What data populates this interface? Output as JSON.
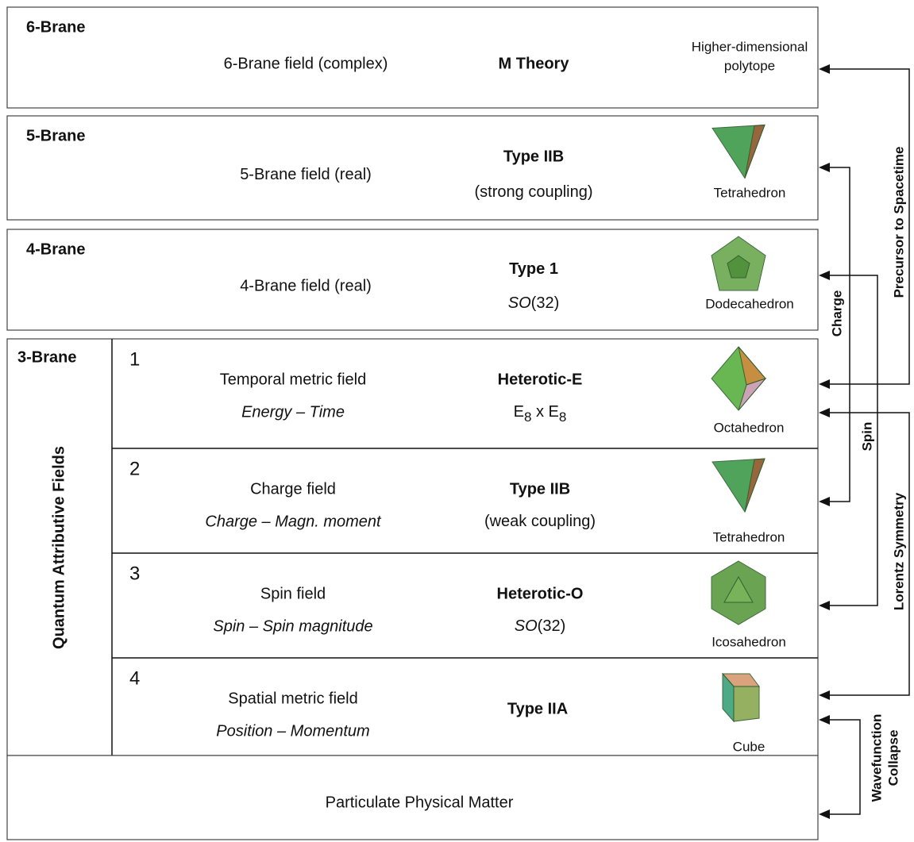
{
  "branes": [
    {
      "label": "6-Brane",
      "field": "6-Brane field (complex)",
      "theory": "M Theory",
      "shape_lines": [
        "Higher-dimensional",
        "polytope"
      ]
    },
    {
      "label": "5-Brane",
      "field": "5-Brane field (real)",
      "theory": "Type IIB",
      "detail": [
        {
          "text": "(strong coupling)",
          "style": "normal"
        }
      ],
      "shape_lines": [
        "Tetrahedron"
      ]
    },
    {
      "label": "4-Brane",
      "field": "4-Brane field (real)",
      "theory": "Type 1",
      "detail": [
        {
          "text": "SO",
          "style": "italic"
        },
        {
          "text": "(32)",
          "style": "normal"
        }
      ],
      "shape_lines": [
        "Dodecahedron"
      ]
    }
  ],
  "three_brane": {
    "label": "3-Brane",
    "side_label": "Quantum Attributive Fields",
    "rows": [
      {
        "number": "1",
        "field": "Temporal metric field",
        "pair": "Energy – Time",
        "theory": "Heterotic-E",
        "detail": [
          {
            "text": "E",
            "style": "normal"
          },
          {
            "text": "8",
            "style": "sub"
          },
          {
            "text": " x E",
            "style": "normal"
          },
          {
            "text": "8",
            "style": "sub"
          }
        ],
        "shape": "Octahedron"
      },
      {
        "number": "2",
        "field": "Charge field",
        "pair": "Charge – Magn. moment",
        "theory": "Type IIB",
        "detail": [
          {
            "text": "(weak coupling)",
            "style": "normal"
          }
        ],
        "shape": "Tetrahedron"
      },
      {
        "number": "3",
        "field": "Spin field",
        "pair": "Spin – Spin magnitude",
        "theory": "Heterotic-O",
        "detail": [
          {
            "text": "SO",
            "style": "italic"
          },
          {
            "text": "(32)",
            "style": "normal"
          }
        ],
        "shape": "Icosahedron"
      },
      {
        "number": "4",
        "field": "Spatial metric field",
        "pair": "Position – Momentum",
        "theory": "Type IIA",
        "shape": "Cube"
      }
    ]
  },
  "bottom": "Particulate Physical Matter",
  "connectors": [
    {
      "label_lines": [
        "Precursor to Spacetime"
      ]
    },
    {
      "label_lines": [
        "Charge"
      ]
    },
    {
      "label_lines": [
        "Spin"
      ]
    },
    {
      "label_lines": [
        "Lorentz Symmetry"
      ]
    },
    {
      "label_lines": [
        "Wavefunction",
        "Collapse"
      ]
    }
  ]
}
